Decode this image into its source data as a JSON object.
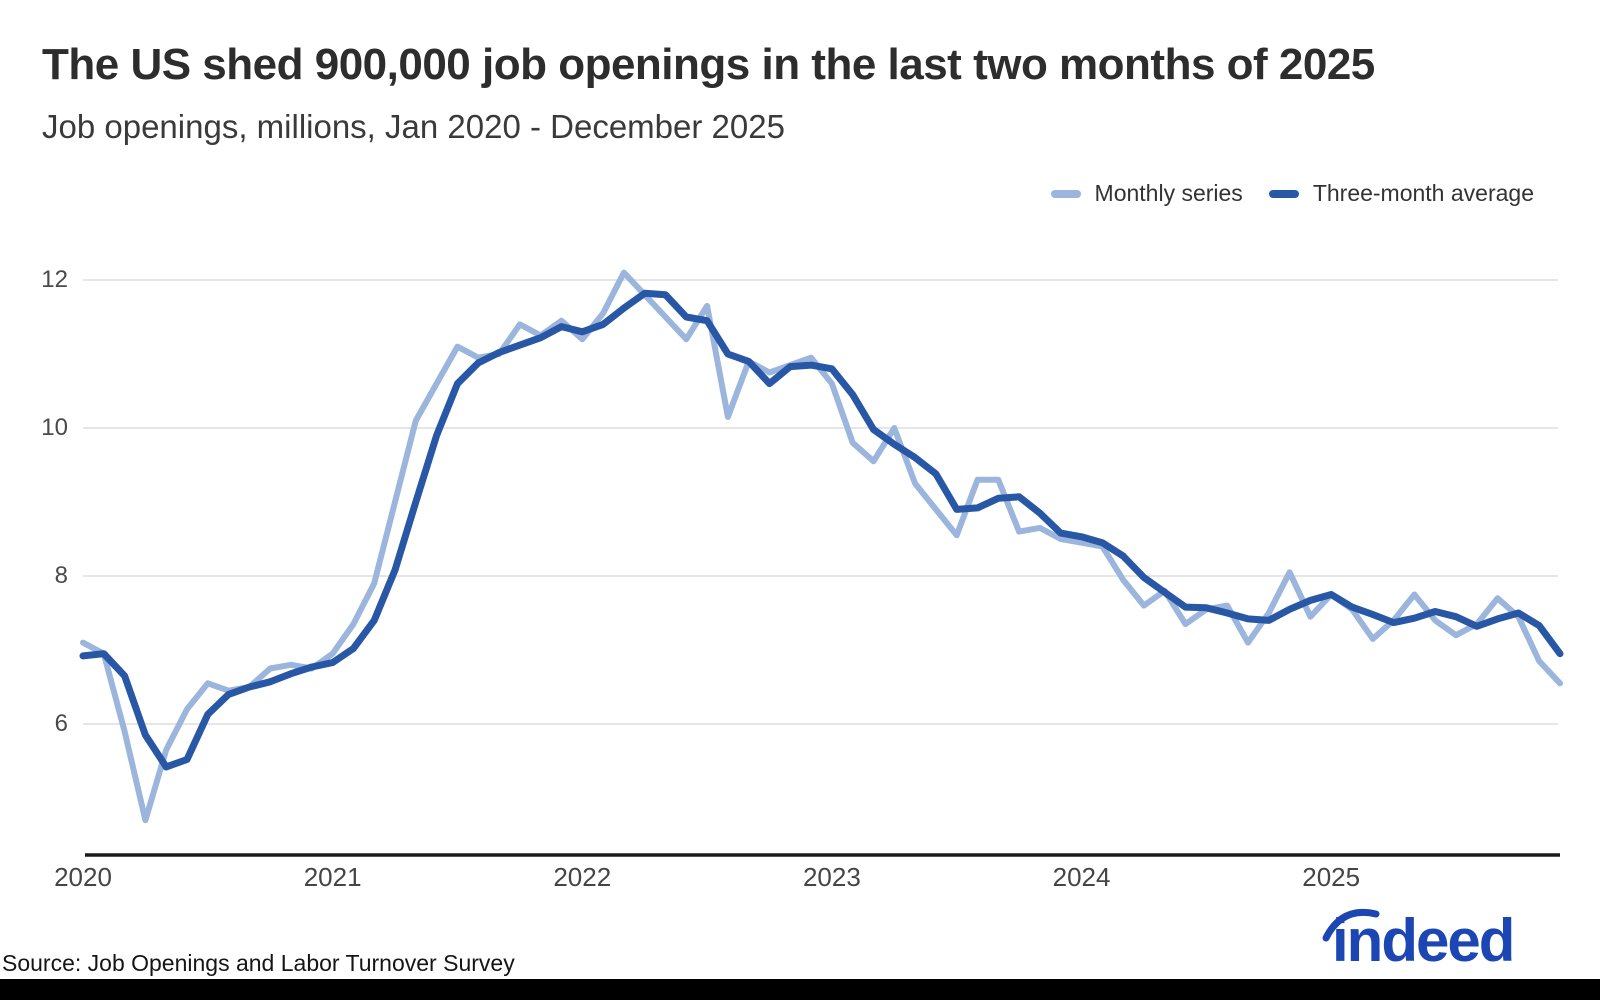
{
  "header": {
    "title": "The US shed 900,000 job openings in the last two months of 2025",
    "subtitle": "Job openings, millions, Jan 2020 - December 2025"
  },
  "legend": [
    {
      "label": "Monthly series",
      "color": "#9bb5dc"
    },
    {
      "label": "Three-month average",
      "color": "#2857a6"
    }
  ],
  "chart_data": {
    "type": "line",
    "title": "The US shed 900,000 job openings in the last two months of 2025",
    "subtitle": "Job openings, millions, Jan 2020 - December 2025",
    "x_start": "Jan 2020",
    "x_end": "December 2025",
    "x_tick_labels": [
      "2020",
      "2021",
      "2022",
      "2023",
      "2024",
      "2025"
    ],
    "x_tick_month_indices": [
      0,
      12,
      24,
      36,
      48,
      60
    ],
    "y_ticks": [
      12,
      10,
      8,
      6
    ],
    "ylim": [
      4.2,
      12.3
    ],
    "grid": "horizontal",
    "legend_position": "top-right",
    "series": [
      {
        "name": "Monthly series",
        "color": "#9bb5dc",
        "values": [
          7.1,
          6.95,
          5.9,
          4.7,
          5.65,
          6.2,
          6.55,
          6.45,
          6.5,
          6.75,
          6.8,
          6.75,
          6.95,
          7.35,
          7.9,
          9.0,
          10.1,
          10.6,
          11.1,
          10.95,
          11.0,
          11.4,
          11.25,
          11.45,
          11.2,
          11.55,
          12.1,
          11.8,
          11.5,
          11.2,
          11.65,
          10.15,
          10.9,
          10.75,
          10.85,
          10.95,
          10.6,
          9.8,
          9.55,
          10.0,
          9.25,
          8.9,
          8.55,
          9.3,
          9.3,
          8.6,
          8.65,
          8.5,
          8.45,
          8.4,
          7.95,
          7.6,
          7.8,
          7.35,
          7.55,
          7.6,
          7.1,
          7.5,
          8.05,
          7.45,
          7.75,
          7.55,
          7.15,
          7.4,
          7.75,
          7.4,
          7.2,
          7.35,
          7.7,
          7.45,
          6.85,
          6.55
        ]
      },
      {
        "name": "Three-month average",
        "color": "#2857a6",
        "values": [
          6.92,
          6.95,
          6.65,
          5.85,
          5.42,
          5.52,
          6.13,
          6.4,
          6.5,
          6.57,
          6.68,
          6.77,
          6.83,
          7.02,
          7.4,
          8.08,
          9.0,
          9.9,
          10.6,
          10.88,
          11.02,
          11.12,
          11.22,
          11.37,
          11.3,
          11.4,
          11.62,
          11.82,
          11.8,
          11.5,
          11.45,
          11.0,
          10.9,
          10.6,
          10.83,
          10.85,
          10.8,
          10.45,
          9.98,
          9.78,
          9.6,
          9.38,
          8.9,
          8.92,
          9.05,
          9.07,
          8.85,
          8.58,
          8.53,
          8.45,
          8.27,
          7.98,
          7.78,
          7.58,
          7.57,
          7.5,
          7.42,
          7.4,
          7.55,
          7.67,
          7.75,
          7.58,
          7.48,
          7.37,
          7.43,
          7.52,
          7.45,
          7.32,
          7.42,
          7.5,
          7.33,
          6.95
        ]
      }
    ]
  },
  "footer": {
    "source": "Source: Job Openings and Labor Turnover Survey",
    "logo_text": "indeed"
  },
  "colors": {
    "gridline": "#e6e6e6",
    "axis": "#1a1a1a",
    "logo_blue": "#1b46b4"
  }
}
